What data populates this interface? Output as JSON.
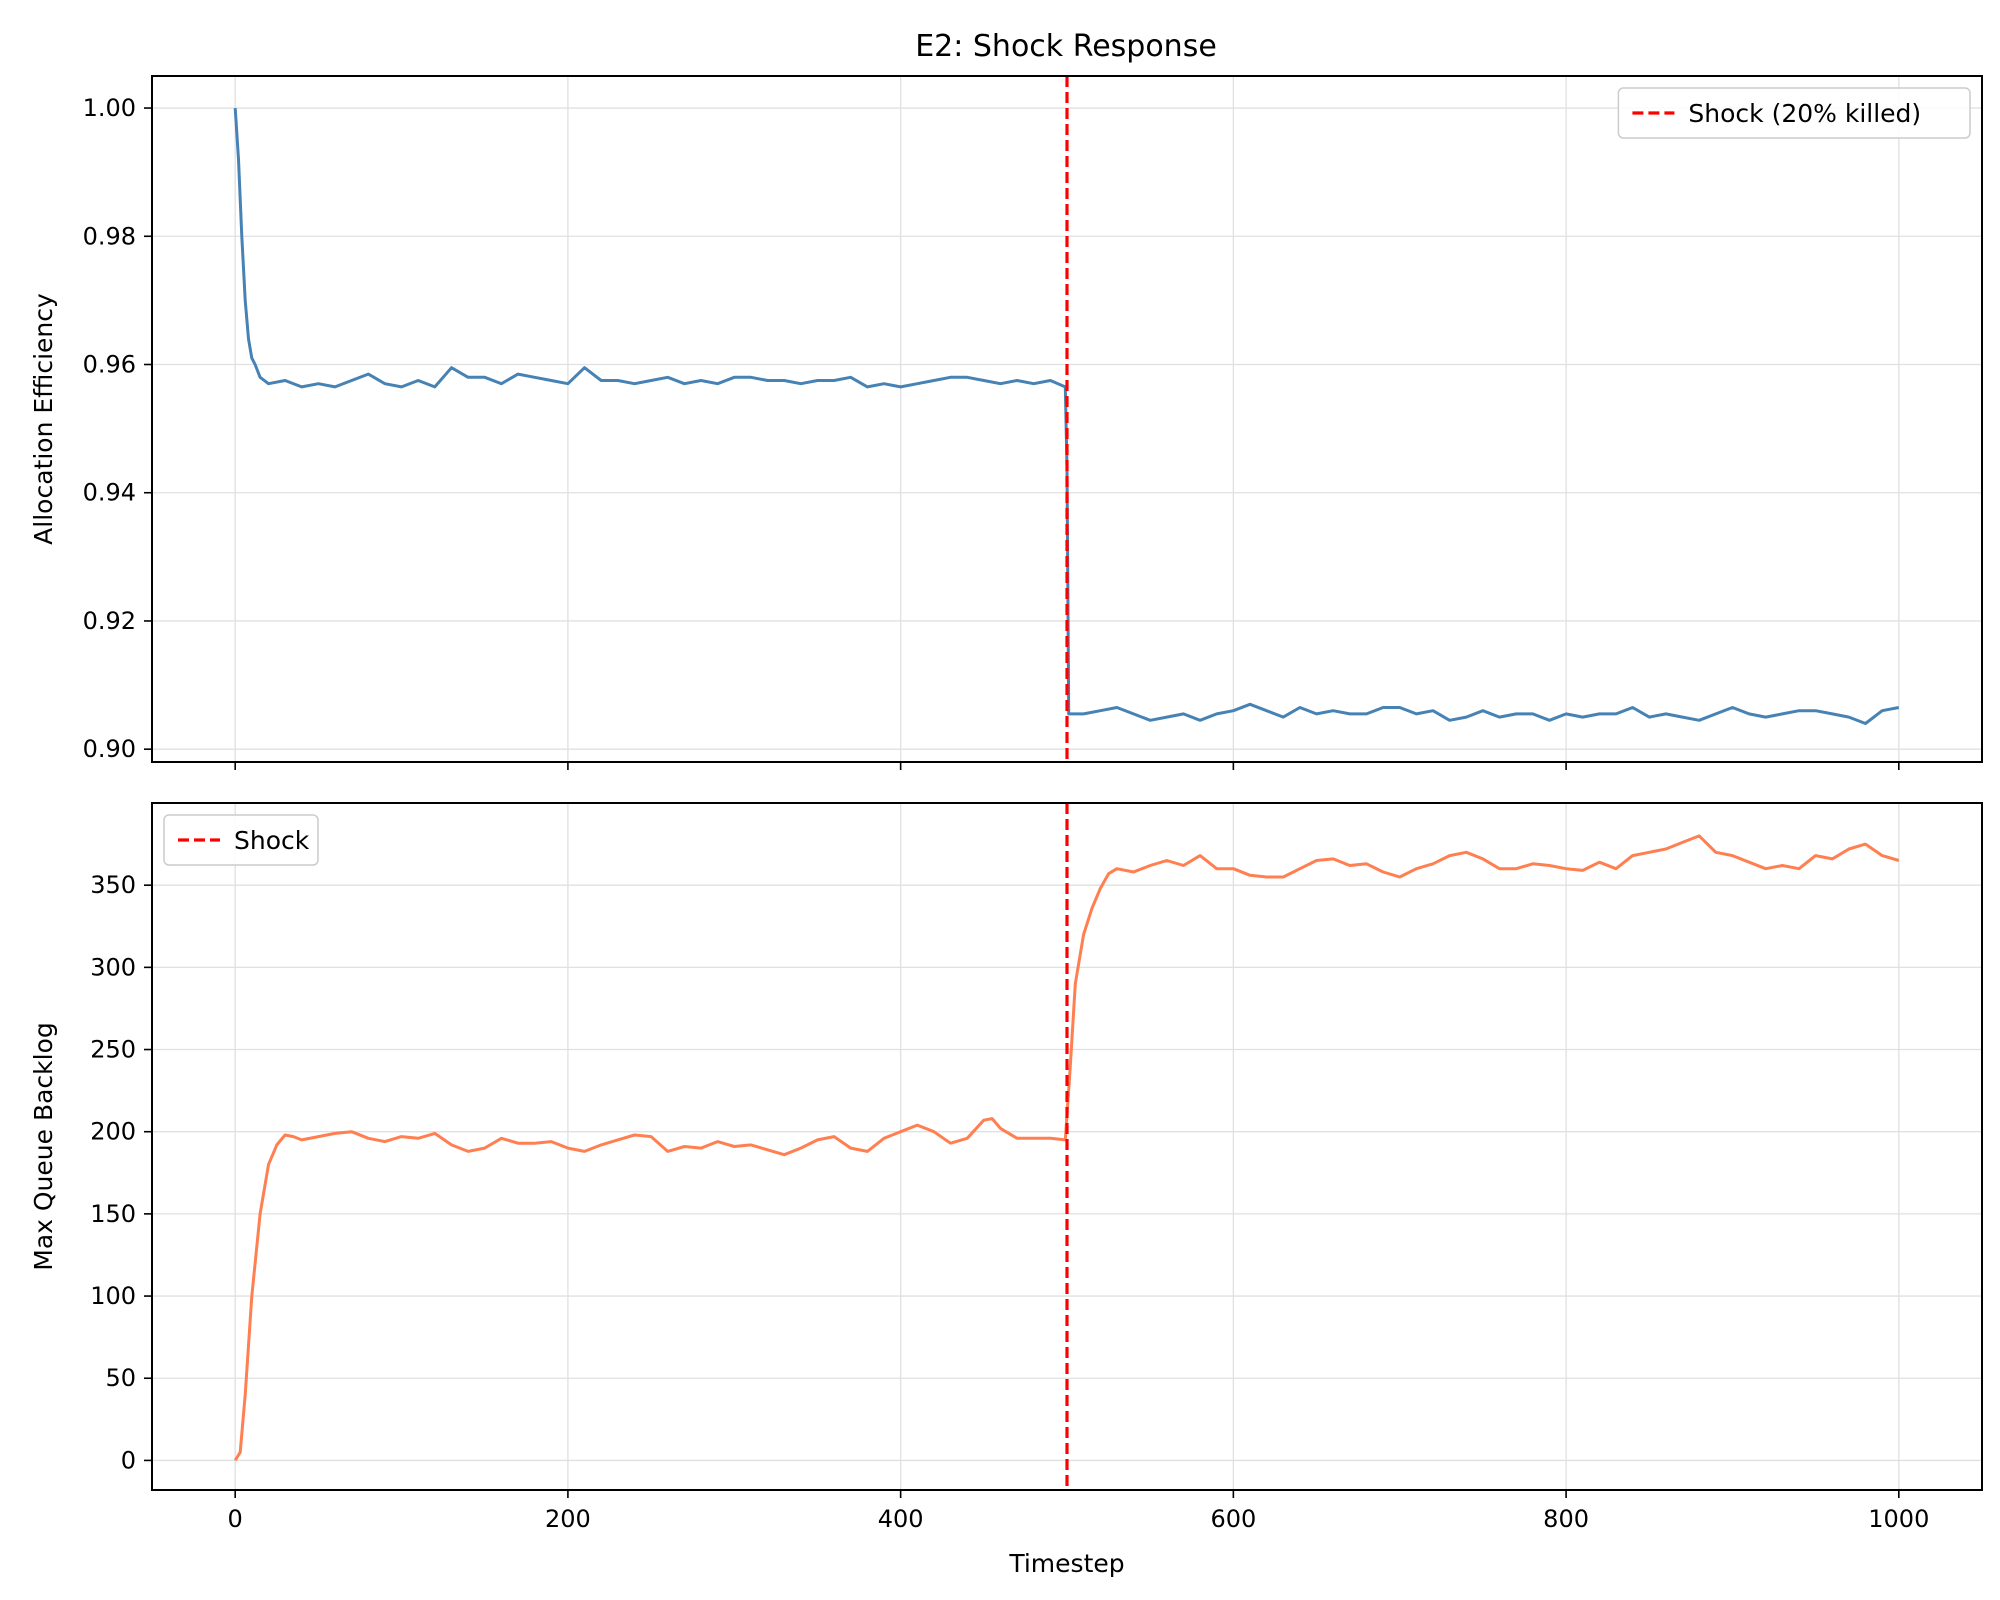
{
  "figure": {
    "title": "E2: Shock Response"
  },
  "colors": {
    "efficiency_line": "#4682b4",
    "backlog_line": "#ff7f50",
    "shock_line": "#ff0000",
    "grid": "#e0e0e0",
    "frame": "#000000"
  },
  "chart_data": [
    {
      "type": "line",
      "title": "E2: Shock Response",
      "xlabel": "",
      "ylabel": "Allocation Efficiency",
      "xlim": [
        -50,
        1050
      ],
      "ylim": [
        0.898,
        1.005
      ],
      "xticks": [
        0,
        200,
        400,
        600,
        800,
        1000
      ],
      "xtick_labels_visible": false,
      "yticks": [
        0.9,
        0.92,
        0.94,
        0.96,
        0.98,
        1.0
      ],
      "ytick_labels": [
        "0.90",
        "0.92",
        "0.94",
        "0.96",
        "0.98",
        "1.00"
      ],
      "grid": true,
      "legend": {
        "position": "upper-right",
        "entries": [
          "Shock (20% killed)"
        ]
      },
      "vline": {
        "x": 500,
        "style": "dashed",
        "label": "Shock (20% killed)"
      },
      "series": [
        {
          "color": "steelblue",
          "x": [
            0,
            2,
            4,
            6,
            8,
            10,
            12,
            15,
            20,
            30,
            40,
            50,
            60,
            70,
            80,
            90,
            100,
            110,
            120,
            130,
            140,
            150,
            160,
            170,
            180,
            190,
            200,
            210,
            220,
            230,
            240,
            250,
            260,
            270,
            280,
            290,
            300,
            310,
            320,
            330,
            340,
            350,
            360,
            370,
            380,
            390,
            400,
            410,
            420,
            430,
            440,
            450,
            460,
            470,
            480,
            490,
            499,
            500,
            501,
            510,
            520,
            530,
            540,
            550,
            560,
            570,
            580,
            590,
            600,
            610,
            620,
            630,
            640,
            650,
            660,
            670,
            680,
            690,
            700,
            710,
            720,
            730,
            740,
            750,
            760,
            770,
            780,
            790,
            800,
            810,
            820,
            830,
            840,
            850,
            860,
            870,
            880,
            890,
            900,
            910,
            920,
            930,
            940,
            950,
            960,
            970,
            980,
            990,
            1000
          ],
          "values": [
            1.0,
            0.992,
            0.98,
            0.97,
            0.964,
            0.961,
            0.96,
            0.958,
            0.957,
            0.9575,
            0.9565,
            0.957,
            0.9565,
            0.9575,
            0.9585,
            0.957,
            0.9565,
            0.9575,
            0.9565,
            0.9595,
            0.958,
            0.958,
            0.957,
            0.9585,
            0.958,
            0.9575,
            0.957,
            0.9595,
            0.9575,
            0.9575,
            0.957,
            0.9575,
            0.958,
            0.957,
            0.9575,
            0.957,
            0.958,
            0.958,
            0.9575,
            0.9575,
            0.957,
            0.9575,
            0.9575,
            0.958,
            0.9565,
            0.957,
            0.9565,
            0.957,
            0.9575,
            0.958,
            0.958,
            0.9575,
            0.957,
            0.9575,
            0.957,
            0.9575,
            0.9565,
            0.944,
            0.9055,
            0.9055,
            0.906,
            0.9065,
            0.9055,
            0.9045,
            0.905,
            0.9055,
            0.9045,
            0.9055,
            0.906,
            0.907,
            0.906,
            0.905,
            0.9065,
            0.9055,
            0.906,
            0.9055,
            0.9055,
            0.9065,
            0.9065,
            0.9055,
            0.906,
            0.9045,
            0.905,
            0.906,
            0.905,
            0.9055,
            0.9055,
            0.9045,
            0.9055,
            0.905,
            0.9055,
            0.9055,
            0.9065,
            0.905,
            0.9055,
            0.905,
            0.9045,
            0.9055,
            0.9065,
            0.9055,
            0.905,
            0.9055,
            0.906,
            0.906,
            0.9055,
            0.905,
            0.904,
            0.906,
            0.9065
          ]
        }
      ]
    },
    {
      "type": "line",
      "xlabel": "Timestep",
      "ylabel": "Max Queue Backlog",
      "xlim": [
        -50,
        1050
      ],
      "ylim": [
        -18,
        400
      ],
      "xticks": [
        0,
        200,
        400,
        600,
        800,
        1000
      ],
      "xtick_labels": [
        "0",
        "200",
        "400",
        "600",
        "800",
        "1000"
      ],
      "yticks": [
        0,
        50,
        100,
        150,
        200,
        250,
        300,
        350
      ],
      "ytick_labels": [
        "0",
        "50",
        "100",
        "150",
        "200",
        "250",
        "300",
        "350"
      ],
      "grid": true,
      "legend": {
        "position": "upper-left",
        "entries": [
          "Shock"
        ]
      },
      "vline": {
        "x": 500,
        "style": "dashed",
        "label": "Shock"
      },
      "series": [
        {
          "color": "coral",
          "x": [
            0,
            3,
            6,
            10,
            15,
            20,
            25,
            30,
            35,
            40,
            50,
            60,
            70,
            80,
            90,
            100,
            110,
            120,
            130,
            140,
            150,
            160,
            170,
            180,
            190,
            200,
            210,
            220,
            230,
            240,
            250,
            260,
            270,
            280,
            290,
            300,
            310,
            320,
            330,
            340,
            350,
            360,
            370,
            380,
            390,
            400,
            410,
            420,
            430,
            440,
            450,
            455,
            460,
            470,
            480,
            490,
            499,
            502,
            505,
            510,
            515,
            520,
            525,
            530,
            540,
            550,
            560,
            570,
            580,
            590,
            600,
            610,
            620,
            630,
            640,
            650,
            660,
            670,
            680,
            690,
            700,
            710,
            720,
            730,
            740,
            750,
            760,
            770,
            780,
            790,
            800,
            810,
            820,
            830,
            840,
            850,
            860,
            870,
            880,
            890,
            900,
            910,
            920,
            930,
            940,
            950,
            960,
            970,
            980,
            990,
            1000
          ],
          "values": [
            0,
            5,
            40,
            100,
            150,
            180,
            192,
            198,
            197,
            195,
            197,
            199,
            200,
            196,
            194,
            197,
            196,
            199,
            192,
            188,
            190,
            196,
            193,
            193,
            194,
            190,
            188,
            192,
            195,
            198,
            197,
            188,
            191,
            190,
            194,
            191,
            192,
            189,
            186,
            190,
            195,
            197,
            190,
            188,
            196,
            200,
            204,
            200,
            193,
            196,
            207,
            208,
            202,
            196,
            196,
            196,
            195,
            240,
            290,
            320,
            336,
            348,
            357,
            360,
            358,
            362,
            365,
            362,
            368,
            360,
            360,
            356,
            355,
            355,
            360,
            365,
            366,
            362,
            363,
            358,
            355,
            360,
            363,
            368,
            370,
            366,
            360,
            360,
            363,
            362,
            360,
            359,
            364,
            360,
            368,
            370,
            372,
            376,
            380,
            370,
            368,
            364,
            360,
            362,
            360,
            368,
            366,
            372,
            375,
            368,
            365
          ]
        }
      ]
    }
  ]
}
